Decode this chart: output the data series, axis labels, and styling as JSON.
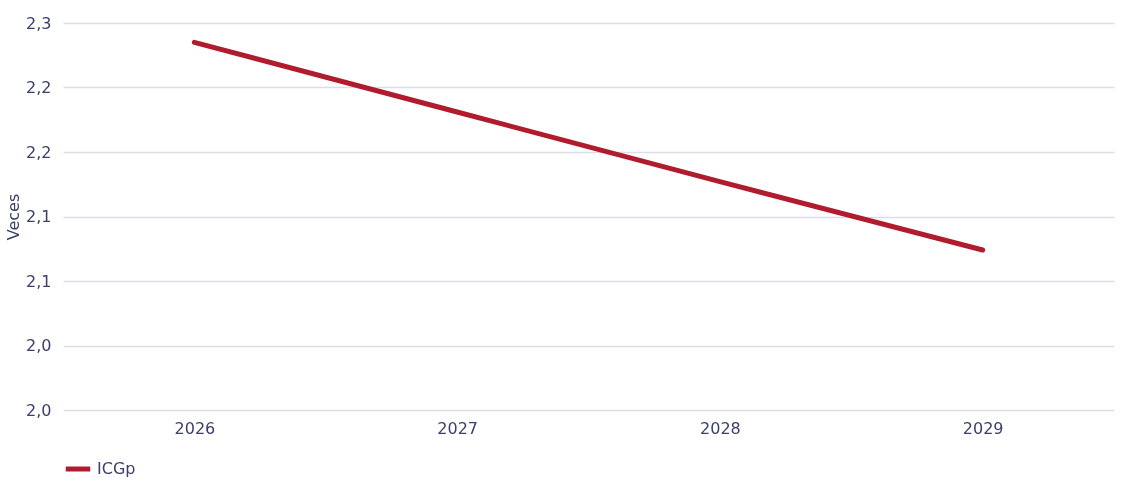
{
  "chart_data": {
    "type": "line",
    "ylabel": "Veces",
    "categories": [
      "2026",
      "2027",
      "2028",
      "2029"
    ],
    "series": [
      {
        "name": "ICGp",
        "color": "#b01c2e",
        "values": [
          2.285,
          2.231,
          2.177,
          2.124
        ]
      }
    ],
    "ylim": [
      2.0,
      2.3
    ],
    "yticks": [
      {
        "value": 2.0,
        "label": "2,0"
      },
      {
        "value": 2.05,
        "label": "2,0"
      },
      {
        "value": 2.1,
        "label": "2,1"
      },
      {
        "value": 2.15,
        "label": "2,1"
      },
      {
        "value": 2.2,
        "label": "2,2"
      },
      {
        "value": 2.25,
        "label": "2,2"
      },
      {
        "value": 2.3,
        "label": "2,3"
      }
    ],
    "grid": "y",
    "legend": "bottom",
    "marker": "none",
    "line_style": "solid"
  }
}
